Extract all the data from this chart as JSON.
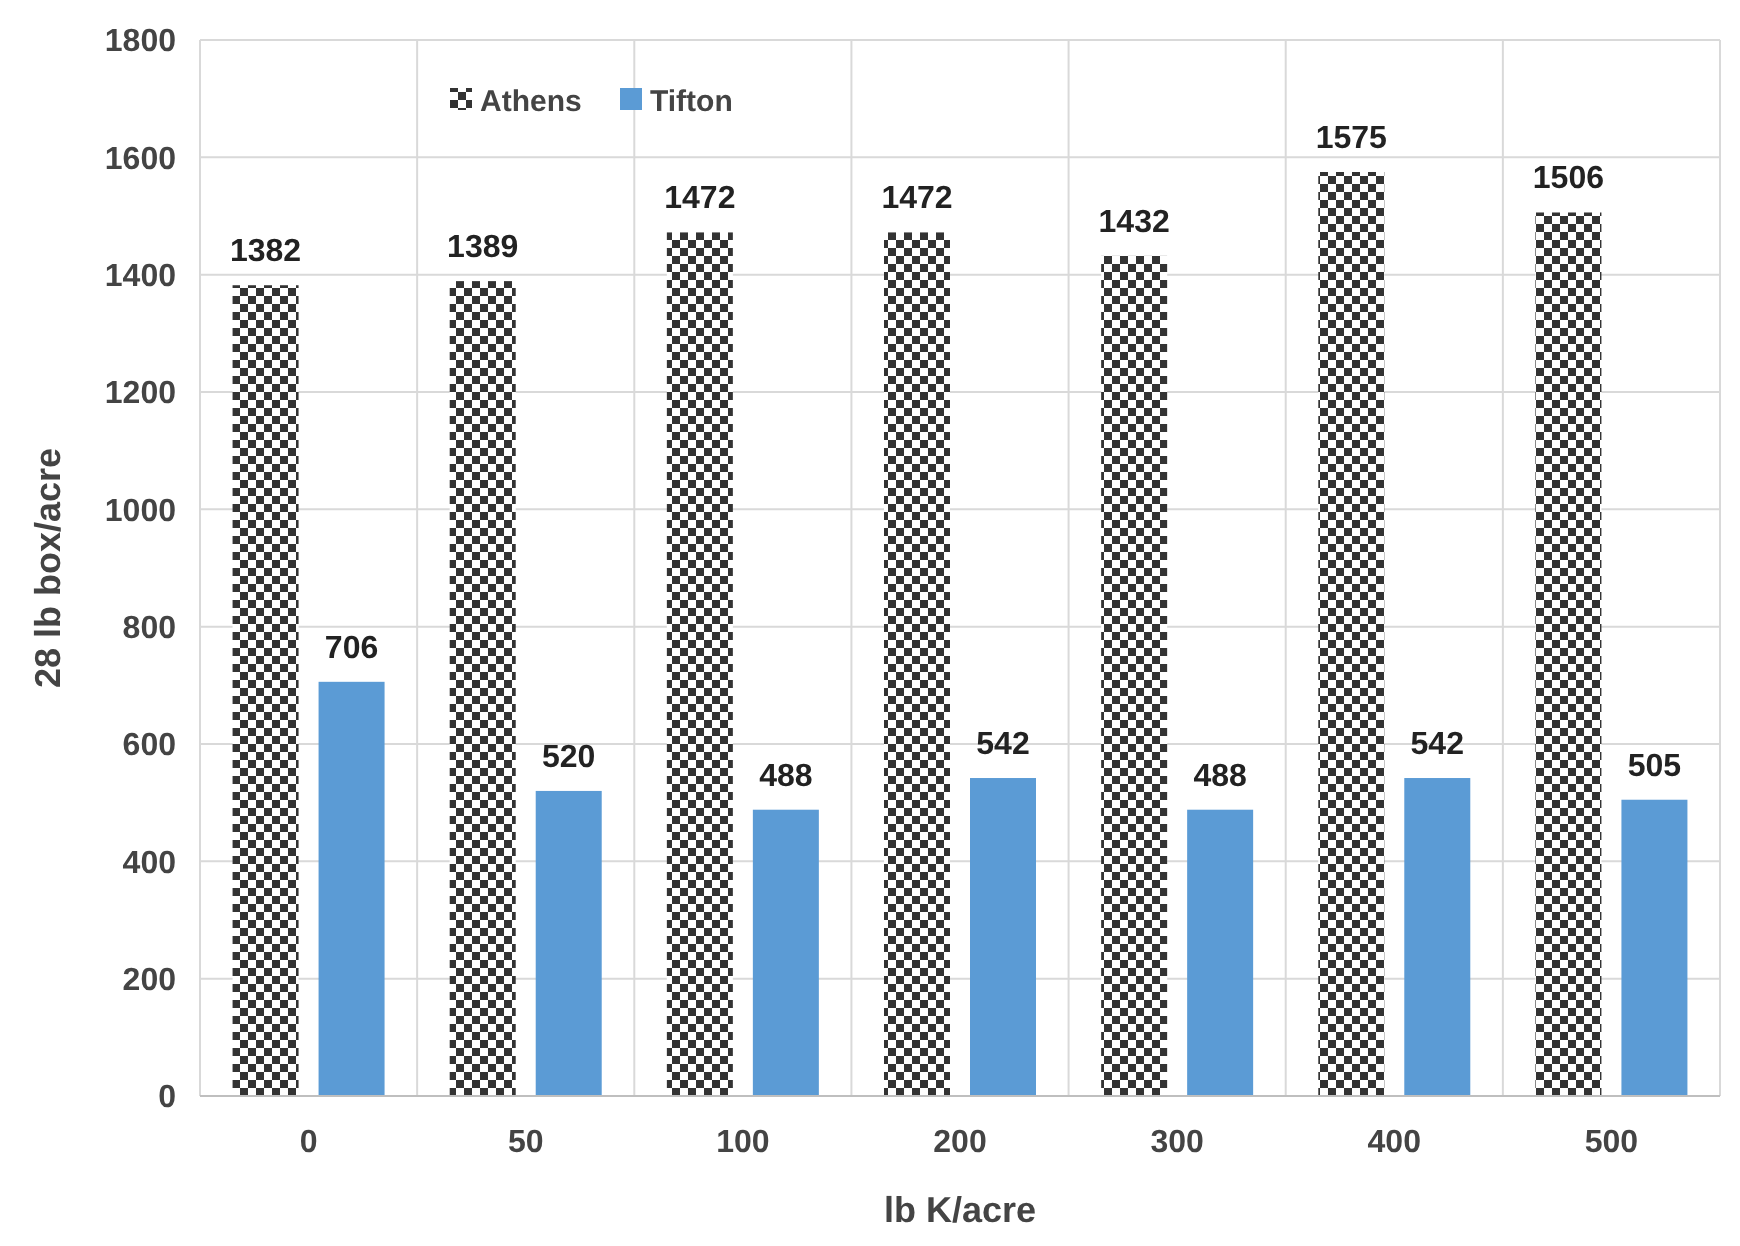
{
  "chart_data": {
    "type": "bar",
    "xlabel": "lb K/acre",
    "ylabel": "28 lb box/acre",
    "categories": [
      "0",
      "50",
      "100",
      "200",
      "300",
      "400",
      "500"
    ],
    "series": [
      {
        "name": "Athens",
        "color": "#333333",
        "values": [
          1382,
          1389,
          1472,
          1472,
          1432,
          1575,
          1506
        ]
      },
      {
        "name": "Tifton",
        "color": "#5b9bd5",
        "values": [
          706,
          520,
          488,
          542,
          488,
          542,
          505
        ]
      }
    ],
    "ylim": [
      0,
      1800
    ],
    "yticks": [
      0,
      200,
      400,
      600,
      800,
      1000,
      1200,
      1400,
      1600,
      1800
    ],
    "grid": true,
    "legend": "top",
    "data_labels": true
  }
}
